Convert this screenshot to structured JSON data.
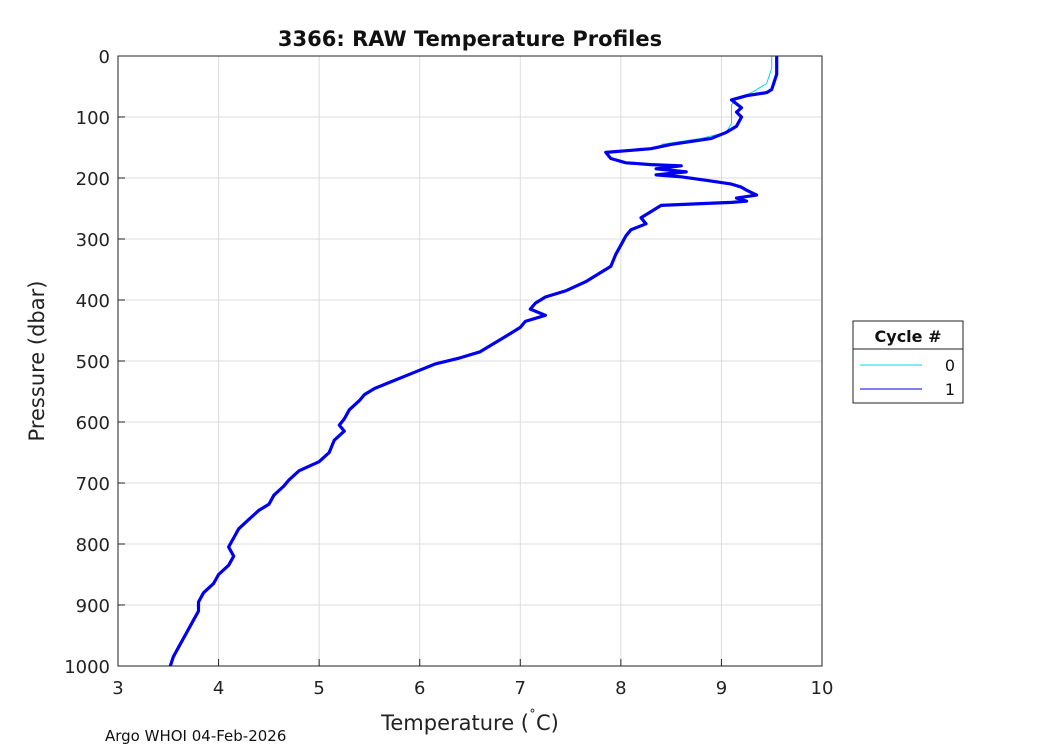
{
  "chart_data": {
    "type": "line",
    "title": "3366: RAW Temperature Profiles",
    "xlabel": "Temperature (",
    "xlabel_unit": "C)",
    "ylabel": "Pressure (dbar)",
    "xlim": [
      3,
      10
    ],
    "ylim": [
      0,
      1000
    ],
    "y_reversed": true,
    "grid": true,
    "x_ticks": [
      "3",
      "4",
      "5",
      "6",
      "7",
      "8",
      "9",
      "10"
    ],
    "y_ticks": [
      "0",
      "100",
      "200",
      "300",
      "400",
      "500",
      "600",
      "700",
      "800",
      "900",
      "1000"
    ],
    "legend": {
      "title": "Cycle #",
      "position": "outside-right",
      "entries": [
        "0",
        "1"
      ]
    },
    "series": [
      {
        "name": "0",
        "color": "#00d8e8",
        "points": [
          [
            9.5,
            0
          ],
          [
            9.5,
            20
          ],
          [
            9.45,
            45
          ],
          [
            9.3,
            60
          ],
          [
            9.15,
            70
          ],
          [
            9.1,
            80
          ],
          [
            9.1,
            100
          ],
          [
            9.1,
            110
          ],
          [
            9.05,
            125
          ],
          [
            8.8,
            135
          ],
          [
            8.4,
            145
          ]
        ]
      },
      {
        "name": "1",
        "color": "#0000ee",
        "points": [
          [
            9.55,
            0
          ],
          [
            9.55,
            30
          ],
          [
            9.5,
            55
          ],
          [
            9.45,
            60
          ],
          [
            9.25,
            65
          ],
          [
            9.1,
            72
          ],
          [
            9.2,
            85
          ],
          [
            9.15,
            92
          ],
          [
            9.2,
            100
          ],
          [
            9.15,
            115
          ],
          [
            9.05,
            125
          ],
          [
            8.9,
            135
          ],
          [
            8.5,
            145
          ],
          [
            8.3,
            152
          ],
          [
            7.85,
            158
          ],
          [
            7.9,
            168
          ],
          [
            8.05,
            175
          ],
          [
            8.3,
            178
          ],
          [
            8.6,
            180
          ],
          [
            8.35,
            185
          ],
          [
            8.65,
            190
          ],
          [
            8.35,
            195
          ],
          [
            8.6,
            198
          ],
          [
            8.9,
            205
          ],
          [
            9.1,
            210
          ],
          [
            9.2,
            215
          ],
          [
            9.25,
            220
          ],
          [
            9.35,
            228
          ],
          [
            9.15,
            233
          ],
          [
            9.25,
            238
          ],
          [
            9.1,
            240
          ],
          [
            8.8,
            242
          ],
          [
            8.4,
            245
          ],
          [
            8.3,
            255
          ],
          [
            8.2,
            265
          ],
          [
            8.25,
            275
          ],
          [
            8.1,
            285
          ],
          [
            8.05,
            295
          ],
          [
            8.0,
            310
          ],
          [
            7.95,
            325
          ],
          [
            7.9,
            345
          ],
          [
            7.8,
            355
          ],
          [
            7.65,
            370
          ],
          [
            7.45,
            385
          ],
          [
            7.25,
            395
          ],
          [
            7.15,
            405
          ],
          [
            7.1,
            415
          ],
          [
            7.25,
            425
          ],
          [
            7.05,
            435
          ],
          [
            7.0,
            445
          ],
          [
            6.9,
            455
          ],
          [
            6.75,
            470
          ],
          [
            6.6,
            485
          ],
          [
            6.4,
            495
          ],
          [
            6.15,
            505
          ],
          [
            6.0,
            515
          ],
          [
            5.85,
            525
          ],
          [
            5.7,
            535
          ],
          [
            5.55,
            545
          ],
          [
            5.45,
            555
          ],
          [
            5.4,
            565
          ],
          [
            5.3,
            580
          ],
          [
            5.25,
            595
          ],
          [
            5.2,
            605
          ],
          [
            5.25,
            615
          ],
          [
            5.15,
            630
          ],
          [
            5.1,
            650
          ],
          [
            5.0,
            665
          ],
          [
            4.8,
            680
          ],
          [
            4.7,
            695
          ],
          [
            4.65,
            705
          ],
          [
            4.55,
            720
          ],
          [
            4.5,
            735
          ],
          [
            4.4,
            745
          ],
          [
            4.3,
            760
          ],
          [
            4.2,
            775
          ],
          [
            4.15,
            790
          ],
          [
            4.1,
            805
          ],
          [
            4.15,
            820
          ],
          [
            4.1,
            835
          ],
          [
            4.0,
            850
          ],
          [
            3.95,
            865
          ],
          [
            3.85,
            880
          ],
          [
            3.8,
            895
          ],
          [
            3.8,
            910
          ],
          [
            3.75,
            925
          ],
          [
            3.7,
            940
          ],
          [
            3.65,
            955
          ],
          [
            3.6,
            970
          ],
          [
            3.55,
            985
          ],
          [
            3.52,
            1000
          ]
        ]
      }
    ]
  },
  "footer": "Argo WHOI 04-Feb-2026"
}
